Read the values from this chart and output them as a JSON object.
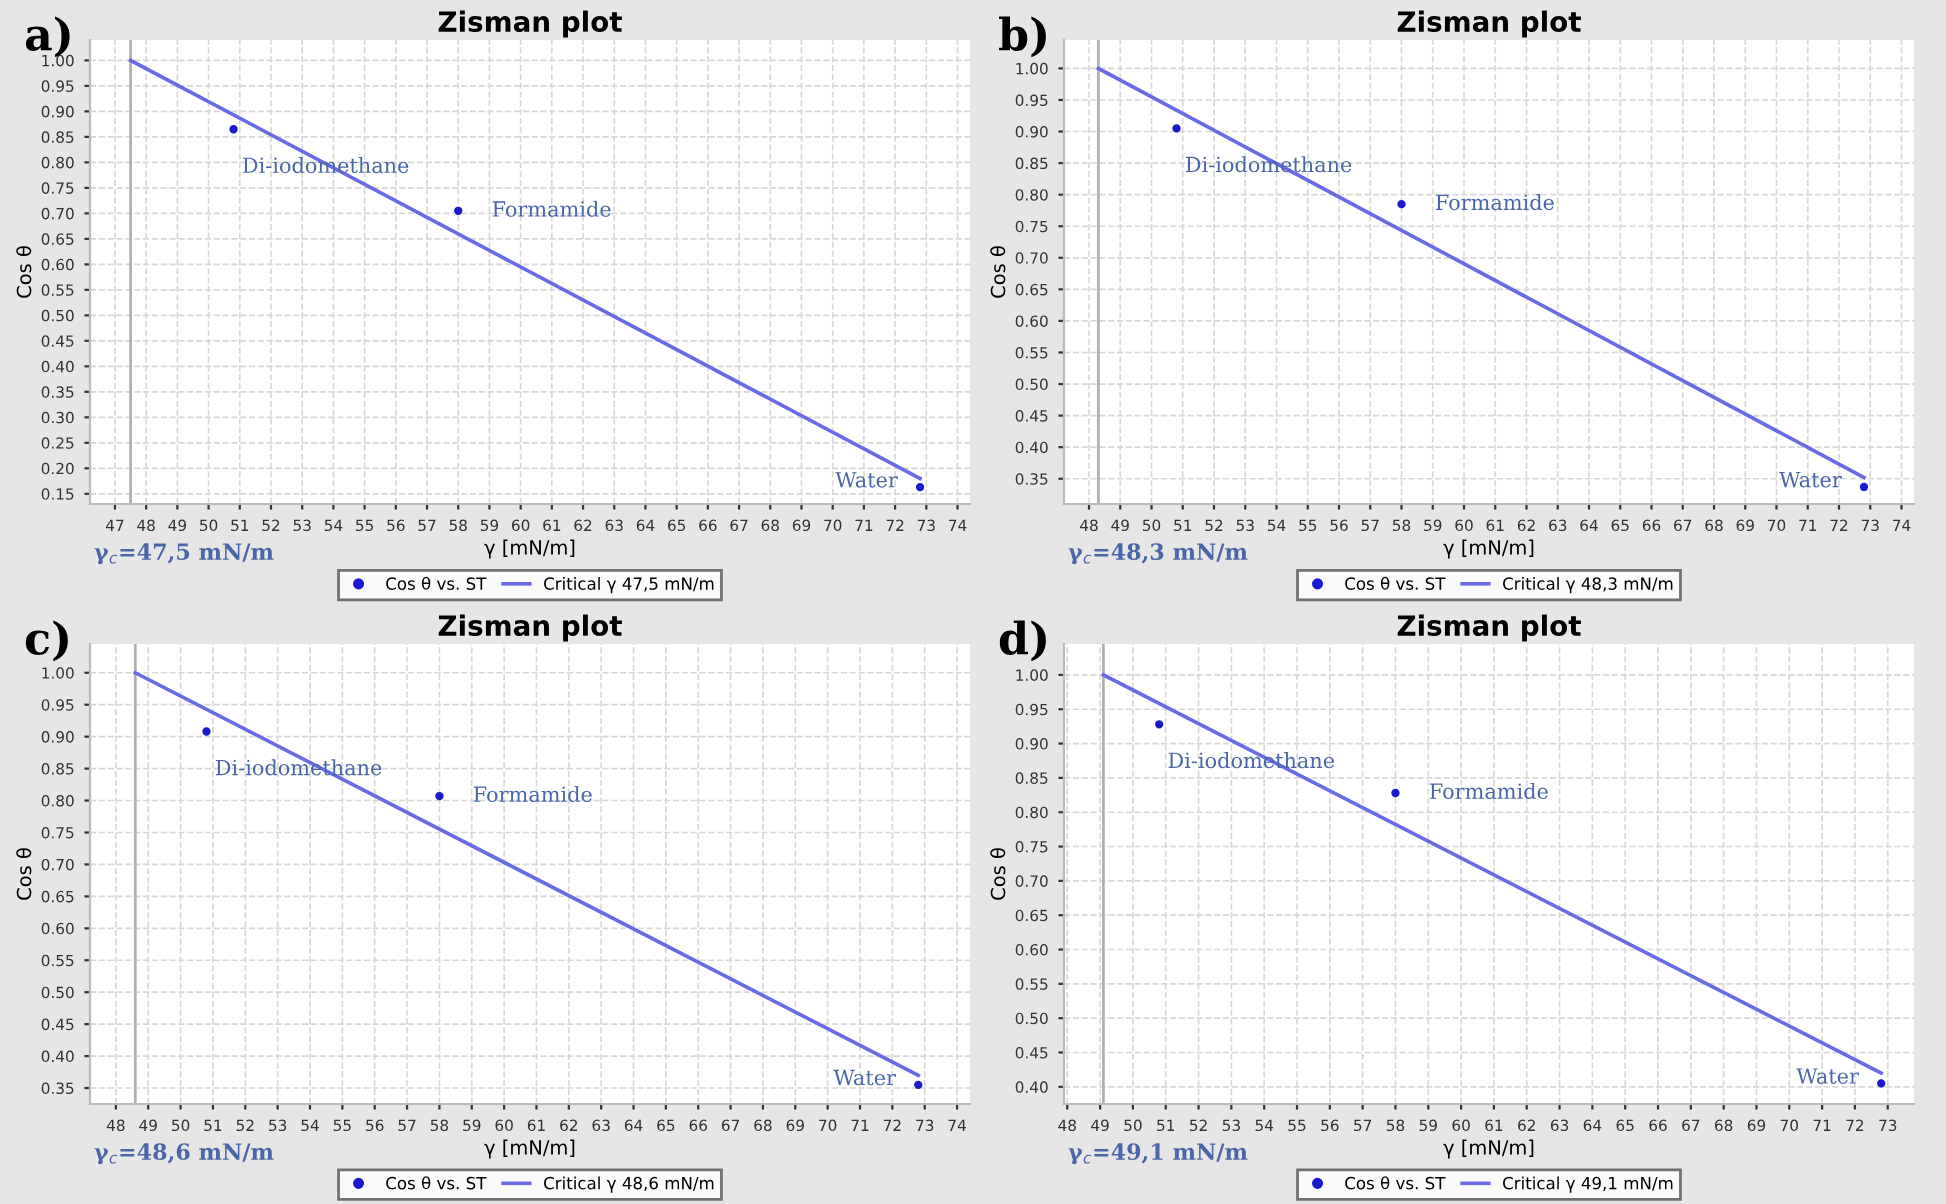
{
  "chart_data": [
    {
      "type": "scatter",
      "title": "Zisman plot",
      "xlabel": "γ [mN/m]",
      "ylabel": "Cos θ",
      "xlim": [
        46.2,
        74.4
      ],
      "xticks": [
        47,
        48,
        49,
        50,
        51,
        52,
        53,
        54,
        55,
        56,
        57,
        58,
        59,
        60,
        61,
        62,
        63,
        64,
        65,
        66,
        67,
        68,
        69,
        70,
        71,
        72,
        73,
        74
      ],
      "ylim": [
        0.13,
        1.04
      ],
      "yticks": [
        0.15,
        {
          "value": 0.2,
          "label": "0.20"
        },
        0.25,
        {
          "value": 0.3,
          "label": "0.30"
        },
        0.35,
        {
          "value": 0.4,
          "label": "0.40"
        },
        0.45,
        {
          "value": 0.5,
          "label": "0.50"
        },
        0.55,
        {
          "value": 0.6,
          "label": "0.60"
        },
        0.65,
        {
          "value": 0.7,
          "label": "0.70"
        },
        0.75,
        {
          "value": 0.8,
          "label": "0.80"
        },
        0.85,
        {
          "value": 0.9,
          "label": "0.90"
        },
        0.95,
        {
          "value": 1.0,
          "label": "1.00"
        }
      ],
      "grid": true,
      "legend": "bottom",
      "series": [
        {
          "name": "Cos θ vs. ST",
          "marker": "circle",
          "color": "#1a1acc",
          "x": [
            50.8,
            58.0,
            72.8
          ],
          "values": [
            0.865,
            0.705,
            0.163
          ]
        },
        {
          "name": "Critical γ 47,5 mN/m",
          "type": "line",
          "color": "#6a6ae6",
          "x": [
            47.5,
            72.8
          ],
          "values": [
            1.0,
            0.18
          ]
        }
      ],
      "ref_lines": [
        {
          "axis": "x",
          "value": 47.5,
          "color": "#b0b0b0"
        }
      ],
      "annotations": [
        "a)",
        {
          "text": "Di-iodomethane",
          "x": 50.8,
          "y": 0.865
        },
        {
          "text": "Formamide",
          "x": 58.0,
          "y": 0.705
        },
        {
          "text": "Water",
          "x": 72.8,
          "y": 0.163
        },
        "γ$_{c}$=47,5 mN/m"
      ]
    },
    {
      "type": "scatter",
      "title": "Zisman plot",
      "xlabel": "γ [mN/m]",
      "ylabel": "Cos θ",
      "xlim": [
        47.2,
        74.4
      ],
      "xticks": [
        48,
        49,
        50,
        51,
        52,
        53,
        54,
        55,
        56,
        57,
        58,
        59,
        60,
        61,
        62,
        63,
        64,
        65,
        66,
        67,
        68,
        69,
        70,
        71,
        72,
        73,
        74
      ],
      "ylim": [
        0.31,
        1.045
      ],
      "yticks": [
        0.35,
        {
          "value": 0.4,
          "label": "0.40"
        },
        0.45,
        {
          "value": 0.5,
          "label": "0.50"
        },
        0.55,
        {
          "value": 0.6,
          "label": "0.60"
        },
        0.65,
        {
          "value": 0.7,
          "label": "0.70"
        },
        0.75,
        {
          "value": 0.8,
          "label": "0.80"
        },
        0.85,
        {
          "value": 0.9,
          "label": "0.90"
        },
        0.95,
        {
          "value": 1.0,
          "label": "1.00"
        }
      ],
      "grid": true,
      "legend": "bottom",
      "series": [
        {
          "name": "Cos θ vs. ST",
          "marker": "circle",
          "color": "#1a1acc",
          "x": [
            50.8,
            58.0,
            72.8
          ],
          "values": [
            0.905,
            0.785,
            0.337
          ]
        },
        {
          "name": "Critical γ 48,3 mN/m",
          "type": "line",
          "color": "#6a6ae6",
          "x": [
            48.3,
            72.8
          ],
          "values": [
            1.0,
            0.352
          ]
        }
      ],
      "ref_lines": [
        {
          "axis": "x",
          "value": 48.3,
          "color": "#b0b0b0"
        }
      ],
      "annotations": [
        "b)",
        {
          "text": "Di-iodomethane",
          "x": 50.8,
          "y": 0.905
        },
        {
          "text": "Formamide",
          "x": 58.0,
          "y": 0.785
        },
        {
          "text": "Water",
          "x": 72.8,
          "y": 0.337
        },
        "γ$_{c}$=48,3 mN/m"
      ]
    },
    {
      "type": "scatter",
      "title": "Zisman plot",
      "xlabel": "γ [mN/m]",
      "ylabel": "Cos θ",
      "xlim": [
        47.2,
        74.4
      ],
      "xticks": [
        48,
        49,
        50,
        51,
        52,
        53,
        54,
        55,
        56,
        57,
        58,
        59,
        60,
        61,
        62,
        63,
        64,
        65,
        66,
        67,
        68,
        69,
        70,
        71,
        72,
        73,
        74
      ],
      "ylim": [
        0.325,
        1.045
      ],
      "yticks": [
        0.35,
        {
          "value": 0.4,
          "label": "0.40"
        },
        0.45,
        {
          "value": 0.5,
          "label": "0.50"
        },
        0.55,
        {
          "value": 0.6,
          "label": "0.60"
        },
        0.65,
        {
          "value": 0.7,
          "label": "0.70"
        },
        0.75,
        {
          "value": 0.8,
          "label": "0.80"
        },
        0.85,
        {
          "value": 0.9,
          "label": "0.90"
        },
        0.95,
        {
          "value": 1.0,
          "label": "1.00"
        }
      ],
      "grid": true,
      "legend": "bottom",
      "series": [
        {
          "name": "Cos θ vs. ST",
          "marker": "circle",
          "color": "#1a1acc",
          "x": [
            50.8,
            58.0,
            72.8
          ],
          "values": [
            0.908,
            0.807,
            0.355
          ]
        },
        {
          "name": "Critical γ 48,6 mN/m",
          "type": "line",
          "color": "#6a6ae6",
          "x": [
            48.6,
            72.8
          ],
          "values": [
            1.0,
            0.37
          ]
        }
      ],
      "ref_lines": [
        {
          "axis": "x",
          "value": 48.6,
          "color": "#b0b0b0"
        }
      ],
      "annotations": [
        "c)",
        {
          "text": "Di-iodomethane",
          "x": 50.8,
          "y": 0.908
        },
        {
          "text": "Formamide",
          "x": 58.0,
          "y": 0.807
        },
        {
          "text": "Water",
          "x": 72.8,
          "y": 0.355
        },
        "γ$_{c}$=48,6 mN/m"
      ]
    },
    {
      "type": "scatter",
      "title": "Zisman plot",
      "xlabel": "γ [mN/m]",
      "ylabel": "Cos θ",
      "xlim": [
        47.9,
        73.8
      ],
      "xticks": [
        48,
        49,
        50,
        51,
        52,
        53,
        54,
        55,
        56,
        57,
        58,
        59,
        60,
        61,
        62,
        63,
        64,
        65,
        66,
        67,
        68,
        69,
        70,
        71,
        72,
        73
      ],
      "ylim": [
        0.375,
        1.045
      ],
      "yticks": [
        {
          "value": 0.4,
          "label": "0.40"
        },
        0.45,
        {
          "value": 0.5,
          "label": "0.50"
        },
        0.55,
        {
          "value": 0.6,
          "label": "0.60"
        },
        0.65,
        {
          "value": 0.7,
          "label": "0.70"
        },
        0.75,
        {
          "value": 0.8,
          "label": "0.80"
        },
        0.85,
        {
          "value": 0.9,
          "label": "0.90"
        },
        0.95,
        {
          "value": 1.0,
          "label": "1.00"
        }
      ],
      "grid": true,
      "legend": "bottom",
      "series": [
        {
          "name": "Cos θ vs. ST",
          "marker": "circle",
          "color": "#1a1acc",
          "x": [
            50.8,
            58.0,
            72.8
          ],
          "values": [
            0.928,
            0.828,
            0.405
          ]
        },
        {
          "name": "Critical γ 49,1 mN/m",
          "type": "line",
          "color": "#6a6ae6",
          "x": [
            49.1,
            72.8
          ],
          "values": [
            1.0,
            0.42
          ]
        }
      ],
      "ref_lines": [
        {
          "axis": "x",
          "value": 49.1,
          "color": "#b0b0b0"
        }
      ],
      "annotations": [
        "d)",
        {
          "text": "Di-iodomethane",
          "x": 50.8,
          "y": 0.928
        },
        {
          "text": "Formamide",
          "x": 58.0,
          "y": 0.828
        },
        {
          "text": "Water",
          "x": 72.8,
          "y": 0.405
        },
        "γ$_{c}$=49,1 mN/m"
      ]
    }
  ]
}
